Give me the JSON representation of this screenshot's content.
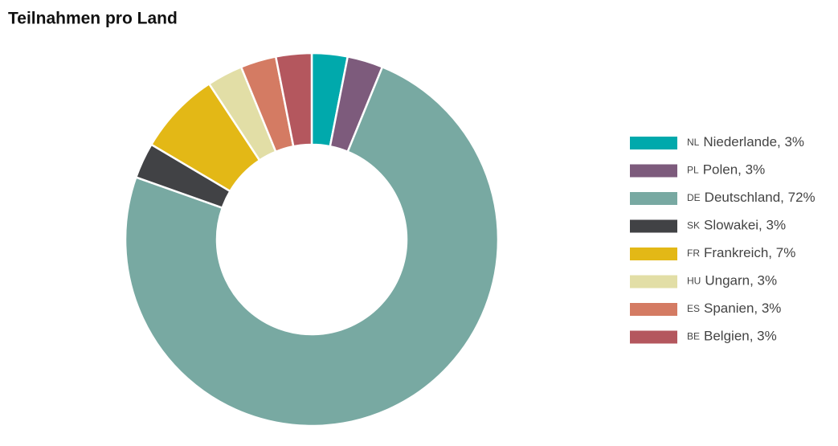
{
  "chart_data": {
    "type": "donut",
    "title": "Teilnahmen pro Land",
    "codes": [
      "NL",
      "PL",
      "DE",
      "SK",
      "FR",
      "HU",
      "ES",
      "BE"
    ],
    "categories": [
      "Niederlande, 3%",
      "Polen, 3%",
      "Deutschland, 72%",
      "Slowakei, 3%",
      "Frankreich, 7%",
      "Ungarn, 3%",
      "Spanien, 3%",
      "Belgien, 3%"
    ],
    "values": [
      3,
      3,
      72,
      3,
      7,
      3,
      3,
      3
    ],
    "colors": [
      "#00a9ac",
      "#7d5b7c",
      "#78a9a2",
      "#414245",
      "#e3b816",
      "#e2dea6",
      "#d47b63",
      "#b4575e"
    ],
    "legend": "right"
  }
}
